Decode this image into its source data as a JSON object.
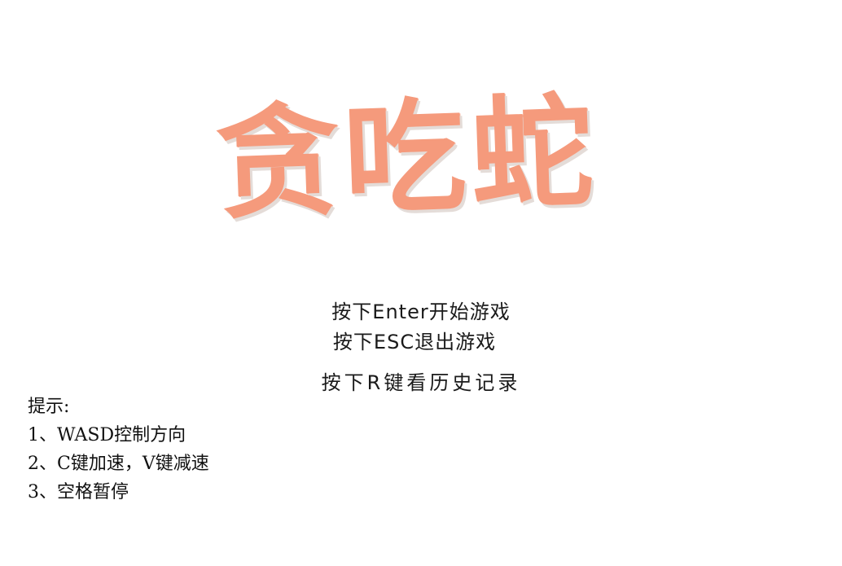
{
  "title": "贪吃蛇",
  "menu": {
    "start_hint": "按下Enter开始游戏",
    "exit_hint": "按下ESC退出游戏",
    "history_hint": "按下R键看历史记录"
  },
  "tips": {
    "heading": "提示:",
    "items": [
      "1、WASD控制方向",
      "2、C键加速，V键减速",
      "3、空格暂停"
    ]
  },
  "colors": {
    "title": "#f59a7c",
    "background": "#ffffff",
    "text": "#111111"
  }
}
